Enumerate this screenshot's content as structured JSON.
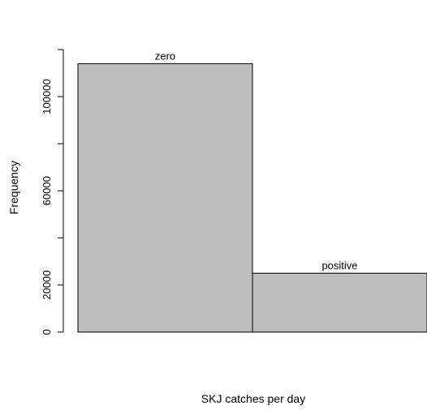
{
  "chart_data": {
    "type": "bar",
    "categories": [
      "zero",
      "positive"
    ],
    "values": [
      114000,
      25000
    ],
    "xlabel": "SKJ catches per day",
    "ylabel": "Frequency",
    "yticks": [
      0,
      20000,
      60000,
      100000
    ],
    "yminor_ticks": [
      40000,
      80000,
      120000
    ],
    "ylim": [
      0,
      120000
    ],
    "bar_fill": "#bebebe",
    "bar_stroke": "#000000"
  }
}
